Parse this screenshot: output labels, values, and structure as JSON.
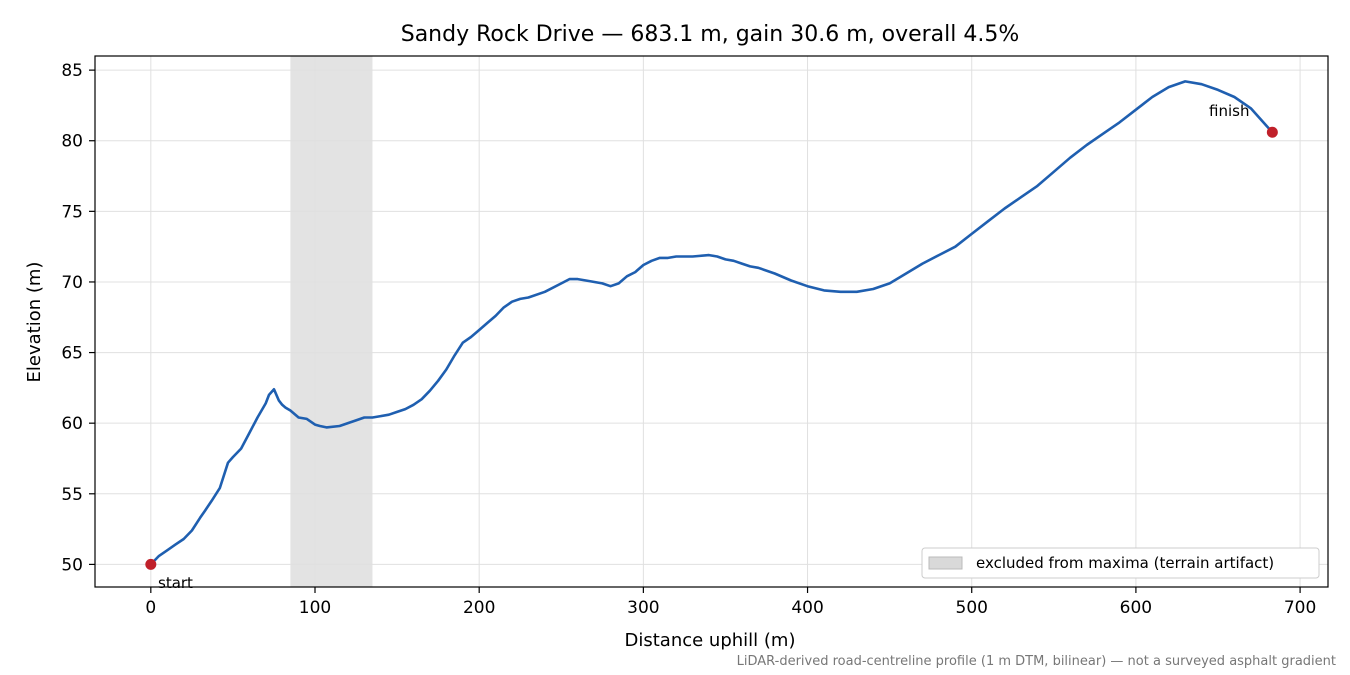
{
  "chart_data": {
    "type": "line",
    "title": "Sandy Rock Drive — 683.1 m, gain 30.6 m, overall 4.5%",
    "xlabel": "Distance uphill (m)",
    "ylabel": "Elevation (m)",
    "xlim": [
      -34,
      717
    ],
    "ylim": [
      48.4,
      86.0
    ],
    "xticks": [
      0,
      100,
      200,
      300,
      400,
      500,
      600,
      700
    ],
    "yticks": [
      50,
      55,
      60,
      65,
      70,
      75,
      80,
      85
    ],
    "grid": true,
    "colors": {
      "line": "#1f5fb0",
      "marker": "#c0202a",
      "band": "#d9d9d9",
      "grid": "#e0e0e0"
    },
    "series": [
      {
        "x": [
          0,
          5,
          10,
          15,
          20,
          25,
          30,
          33,
          37,
          42,
          47,
          50,
          55,
          60,
          65,
          70,
          72,
          75,
          78,
          80,
          82,
          85,
          90,
          95,
          100,
          103,
          107,
          115,
          125,
          130,
          135,
          140,
          145,
          150,
          155,
          160,
          165,
          170,
          175,
          180,
          185,
          190,
          195,
          200,
          205,
          210,
          215,
          220,
          225,
          230,
          240,
          250,
          255,
          260,
          265,
          275,
          280,
          285,
          290,
          295,
          300,
          305,
          310,
          315,
          320,
          330,
          340,
          345,
          350,
          355,
          360,
          365,
          370,
          380,
          390,
          400,
          410,
          420,
          430,
          440,
          450,
          460,
          470,
          480,
          490,
          500,
          510,
          520,
          530,
          540,
          550,
          560,
          570,
          580,
          590,
          600,
          610,
          620,
          630,
          640,
          650,
          660,
          670,
          683.1
        ],
        "y": [
          50.0,
          50.6,
          51.0,
          51.4,
          51.8,
          52.4,
          53.3,
          53.8,
          54.5,
          55.4,
          57.2,
          57.6,
          58.2,
          59.3,
          60.4,
          61.4,
          62.0,
          62.4,
          61.6,
          61.3,
          61.1,
          60.9,
          60.4,
          60.3,
          59.9,
          59.8,
          59.7,
          59.8,
          60.2,
          60.4,
          60.4,
          60.5,
          60.6,
          60.8,
          61.0,
          61.3,
          61.7,
          62.3,
          63.0,
          63.8,
          64.8,
          65.7,
          66.1,
          66.6,
          67.1,
          67.6,
          68.2,
          68.6,
          68.8,
          68.9,
          69.3,
          69.9,
          70.2,
          70.2,
          70.1,
          69.9,
          69.7,
          69.9,
          70.4,
          70.7,
          71.2,
          71.5,
          71.7,
          71.7,
          71.8,
          71.8,
          71.9,
          71.8,
          71.6,
          71.5,
          71.3,
          71.1,
          71.0,
          70.6,
          70.1,
          69.7,
          69.4,
          69.3,
          69.3,
          69.5,
          69.9,
          70.6,
          71.3,
          71.9,
          72.5,
          73.4,
          74.3,
          75.2,
          76.0,
          76.8,
          77.8,
          78.8,
          79.7,
          80.5,
          81.3,
          82.2,
          83.1,
          83.8,
          84.2,
          84.0,
          83.6,
          83.1,
          82.3,
          80.6
        ]
      }
    ],
    "excluded_band": {
      "x": [
        85,
        135
      ],
      "label": "excluded from maxima (terrain artifact)"
    },
    "points": [
      {
        "label": "start",
        "x": 0,
        "y": 50.0
      },
      {
        "label": "finish",
        "x": 683.1,
        "y": 80.6
      }
    ],
    "legend": {
      "placement": "lower-right"
    },
    "footnote": "LiDAR-derived road-centreline profile (1 m DTM, bilinear) — not a surveyed asphalt gradient"
  }
}
